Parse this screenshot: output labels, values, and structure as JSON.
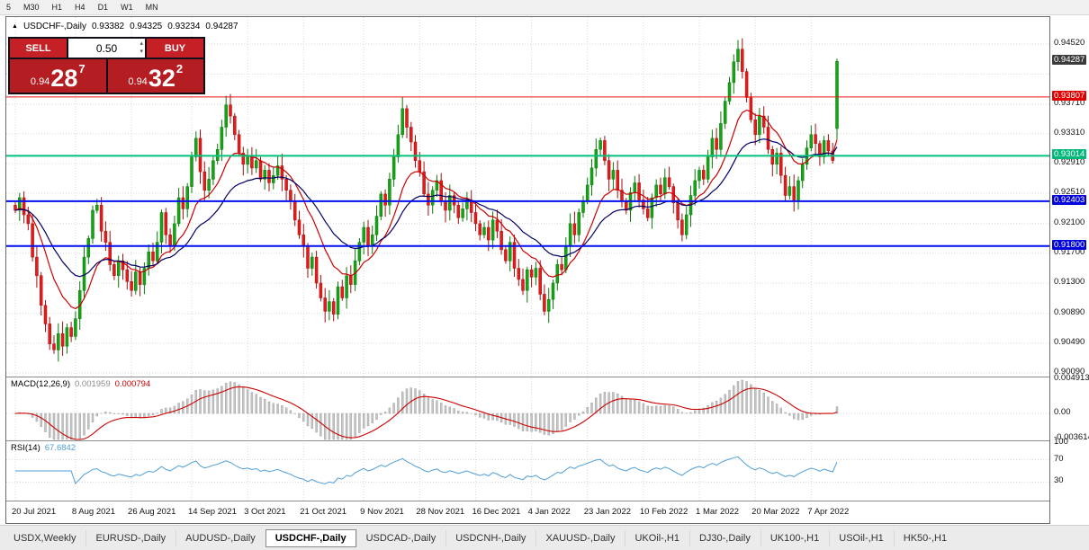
{
  "toolbar": {
    "timeframes": [
      "5",
      "M30",
      "H1",
      "H4",
      "D1",
      "W1",
      "MN"
    ]
  },
  "icons": {
    "panel_toggle": "▲",
    "spinner_up": "▴",
    "spinner_down": "▾"
  },
  "chart_header": {
    "symbol": "USDCHF-,Daily",
    "open": "0.93382",
    "high": "0.94325",
    "low": "0.93234",
    "close": "0.94287"
  },
  "trade_panel": {
    "sell_label": "SELL",
    "buy_label": "BUY",
    "volume": "0.50",
    "sell_price_main": "0.94",
    "sell_price_big": "28",
    "sell_price_sup": "7",
    "buy_price_main": "0.94",
    "buy_price_big": "32",
    "buy_price_sup": "2"
  },
  "indicators": {
    "macd": {
      "label": "MACD(12,26,9)",
      "value_main": "0.001959",
      "value_signal": "0.000794"
    },
    "rsi": {
      "label": "RSI(14)",
      "value": "67.6842"
    }
  },
  "price_axis": {
    "labels": [
      "0.94520",
      "0.93710",
      "0.93310",
      "0.92910",
      "0.92510",
      "0.92100",
      "0.91700",
      "0.91300",
      "0.90890",
      "0.90490",
      "0.90090"
    ],
    "badges": [
      {
        "value": "0.94287",
        "bg": "#3c3c3c"
      },
      {
        "value": "0.93807",
        "bg": "#e00000"
      },
      {
        "value": "0.93014",
        "bg": "#00b87a"
      },
      {
        "value": "0.92403",
        "bg": "#0000dd"
      },
      {
        "value": "0.91800",
        "bg": "#0000dd"
      }
    ],
    "macd_labels": [
      "0.004913",
      "0.00",
      "-0.003614"
    ],
    "rsi_labels": [
      "100",
      "70",
      "30"
    ]
  },
  "tabs": [
    {
      "label": "USDX,Weekly"
    },
    {
      "label": "EURUSD-,Daily"
    },
    {
      "label": "AUDUSD-,Daily"
    },
    {
      "label": "USDCHF-,Daily",
      "active": true
    },
    {
      "label": "USDCAD-,Daily"
    },
    {
      "label": "USDCNH-,Daily"
    },
    {
      "label": "XAUUSD-,Daily"
    },
    {
      "label": "UKOil-,H1"
    },
    {
      "label": "DJ30-,Daily"
    },
    {
      "label": "UK100-,H1"
    },
    {
      "label": "USOil-,H1"
    },
    {
      "label": "HK50-,H1"
    }
  ],
  "chart_data": {
    "type": "candlestick",
    "title": "USDCHF-,Daily",
    "ohlc_display": {
      "open": 0.93382,
      "high": 0.94325,
      "low": 0.93234,
      "close": 0.94287
    },
    "price_axis_top": 0.94883,
    "price_axis_bottom": 0.90041,
    "grid_prices": [
      0.9452,
      0.94115,
      0.9371,
      0.9331,
      0.9291,
      0.9251,
      0.921,
      0.917,
      0.913,
      0.9089,
      0.9049,
      0.9009
    ],
    "levels": [
      {
        "price": 0.93807,
        "color": "#ee1111",
        "w": 1
      },
      {
        "price": 0.93014,
        "color": "#00c07c",
        "w": 2
      },
      {
        "price": 0.92403,
        "color": "#0011ee",
        "w": 2
      },
      {
        "price": 0.918,
        "color": "#0011ee",
        "w": 2
      }
    ],
    "first_open": 0.9235,
    "last_candle": {
      "open": 0.93382,
      "high": 0.94325,
      "low": 0.93234,
      "close": 0.94287
    },
    "closes": [
      0.9228,
      0.9245,
      0.9222,
      0.921,
      0.9165,
      0.914,
      0.91,
      0.9075,
      0.9048,
      0.904,
      0.9062,
      0.9045,
      0.907,
      0.9058,
      0.9082,
      0.912,
      0.9165,
      0.919,
      0.9228,
      0.9235,
      0.92,
      0.9185,
      0.9155,
      0.914,
      0.916,
      0.9148,
      0.9132,
      0.912,
      0.9145,
      0.9128,
      0.915,
      0.9172,
      0.916,
      0.9185,
      0.9225,
      0.9195,
      0.918,
      0.921,
      0.9245,
      0.923,
      0.926,
      0.93,
      0.9325,
      0.928,
      0.9255,
      0.927,
      0.9295,
      0.931,
      0.934,
      0.937,
      0.9355,
      0.933,
      0.9305,
      0.929,
      0.93,
      0.9285,
      0.9295,
      0.927,
      0.9282,
      0.9265,
      0.9275,
      0.9288,
      0.927,
      0.9255,
      0.924,
      0.9215,
      0.9195,
      0.918,
      0.915,
      0.9165,
      0.913,
      0.911,
      0.9092,
      0.9105,
      0.9088,
      0.9125,
      0.911,
      0.914,
      0.9128,
      0.916,
      0.9185,
      0.9205,
      0.918,
      0.9195,
      0.922,
      0.925,
      0.9235,
      0.927,
      0.93,
      0.933,
      0.9365,
      0.934,
      0.932,
      0.9295,
      0.928,
      0.925,
      0.9235,
      0.9255,
      0.9268,
      0.924,
      0.9228,
      0.9248,
      0.9235,
      0.9218,
      0.923,
      0.9242,
      0.9225,
      0.921,
      0.9195,
      0.9205,
      0.9188,
      0.9215,
      0.92,
      0.9175,
      0.916,
      0.9185,
      0.915,
      0.9135,
      0.912,
      0.9148,
      0.9138,
      0.915,
      0.9115,
      0.9092,
      0.9108,
      0.913,
      0.9155,
      0.9148,
      0.918,
      0.921,
      0.9195,
      0.9225,
      0.924,
      0.9262,
      0.9285,
      0.931,
      0.9322,
      0.9295,
      0.927,
      0.9282,
      0.9255,
      0.924,
      0.9228,
      0.9252,
      0.9265,
      0.9242,
      0.923,
      0.9218,
      0.9245,
      0.9262,
      0.925,
      0.9272,
      0.926,
      0.9238,
      0.9215,
      0.9195,
      0.9222,
      0.9248,
      0.9268,
      0.9282,
      0.927,
      0.93,
      0.9325,
      0.931,
      0.9345,
      0.9375,
      0.94,
      0.9428,
      0.9445,
      0.9415,
      0.938,
      0.935,
      0.933,
      0.9355,
      0.934,
      0.931,
      0.929,
      0.9305,
      0.9275,
      0.9248,
      0.926,
      0.9242,
      0.9268,
      0.929,
      0.9312,
      0.933,
      0.9318,
      0.93,
      0.9322,
      0.9308,
      0.9295,
      0.94287
    ],
    "date_ticks": [
      {
        "label": "20 Jul 2021",
        "i": 0
      },
      {
        "label": "8 Aug 2021",
        "i": 14
      },
      {
        "label": "26 Aug 2021",
        "i": 27
      },
      {
        "label": "14 Sep 2021",
        "i": 41
      },
      {
        "label": "3 Oct 2021",
        "i": 54
      },
      {
        "label": "21 Oct 2021",
        "i": 67
      },
      {
        "label": "9 Nov 2021",
        "i": 81
      },
      {
        "label": "28 Nov 2021",
        "i": 94
      },
      {
        "label": "16 Dec 2021",
        "i": 107
      },
      {
        "label": "4 Jan 2022",
        "i": 120
      },
      {
        "label": "23 Jan 2022",
        "i": 133
      },
      {
        "label": "10 Feb 2022",
        "i": 146
      },
      {
        "label": "1 Mar 2022",
        "i": 159
      },
      {
        "label": "20 Mar 2022",
        "i": 172
      },
      {
        "label": "7 Apr 2022",
        "i": 185
      }
    ],
    "ma": {
      "fast_period": 12,
      "fast_color": "#cc0000",
      "slow_period": 26,
      "slow_color": "#000066"
    },
    "macd": {
      "fast": 12,
      "slow": 26,
      "signal": 9,
      "hist_color": "#c4c4c4",
      "hist_stroke": "#9a9a9a",
      "signal_color": "#cc0000",
      "axis_max": 0.004913,
      "axis_min": -0.003614
    },
    "rsi": {
      "period": 14,
      "color": "#4f9fd8",
      "levels": [
        70,
        30
      ]
    },
    "candle_up": "#16a316",
    "candle_up_border": "#0b7a0b",
    "candle_down": "#e31b1b",
    "candle_down_border": "#a50f0f"
  }
}
